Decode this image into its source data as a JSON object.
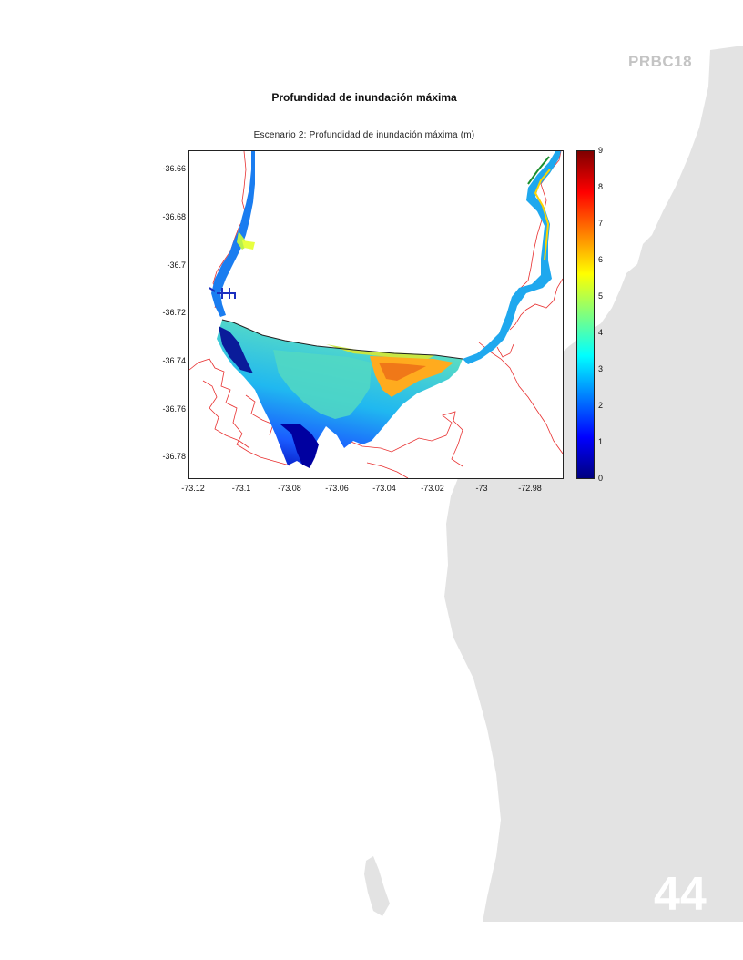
{
  "document": {
    "code": "PRBC18",
    "page_number": "44"
  },
  "figure": {
    "title": "Profundidad de inundación máxima",
    "subtitle": "Escenario 2:  Profundidad de inundación máxima  (m)",
    "y_ticks": [
      "-36.66",
      "-36.68",
      "-36.7",
      "-36.72",
      "-36.74",
      "-36.76",
      "-36.78"
    ],
    "x_ticks": [
      "-73.12",
      "-73.1",
      "-73.08",
      "-73.06",
      "-73.04",
      "-73.02",
      "-73",
      "-72.98"
    ],
    "colorbar_ticks": [
      "9",
      "8",
      "7",
      "6",
      "5",
      "4",
      "3",
      "2",
      "1",
      "0"
    ],
    "colorbar_colors": [
      "#00007f",
      "#0000ff",
      "#007fff",
      "#00ffff",
      "#7fff7f",
      "#ffff00",
      "#ff7f00",
      "#ff0000",
      "#7f0000"
    ],
    "colors": {
      "land": "#e3e3e3",
      "contour": "#e83030",
      "shoreline": "#222222"
    }
  }
}
